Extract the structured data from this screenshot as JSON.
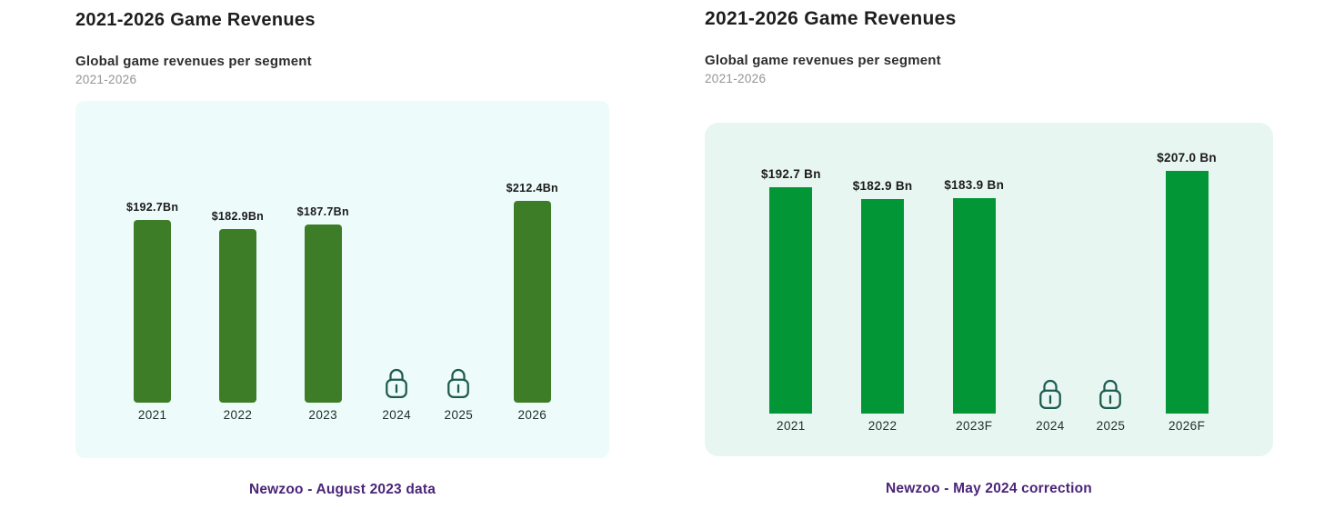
{
  "colors": {
    "page_background": "#ffffff",
    "caption_purple": "#4b2479",
    "lock_stroke": "#1e5b4e",
    "title_text": "#1e1e1e",
    "subtitle_text": "#2e2e2e",
    "period_text": "#949494"
  },
  "icons": {
    "lock": "lock-icon"
  },
  "chart_data": [
    {
      "type": "bar",
      "title": "2021-2026 Game Revenues",
      "subtitle": "Global game revenues per segment",
      "period": "2021-2026",
      "caption": "Newzoo - August 2023 data",
      "categories": [
        "2021",
        "2022",
        "2023",
        "2024",
        "2025",
        "2026"
      ],
      "values": [
        192.7,
        182.9,
        187.7,
        null,
        null,
        212.4
      ],
      "value_labels": [
        "$192.7Bn",
        "$182.9Bn",
        "$187.7Bn",
        null,
        null,
        "$212.4Bn"
      ],
      "locked_categories": [
        "2024",
        "2025"
      ],
      "unit": "USD billions",
      "ylim": [
        0,
        212.4
      ],
      "grid": false,
      "legend": "none",
      "bar_color": "#3e7d28",
      "panel_bg": "#edfbfa"
    },
    {
      "type": "bar",
      "title": "2021-2026 Game Revenues",
      "subtitle": "Global game revenues per segment",
      "period": "2021-2026",
      "caption": "Newzoo - May 2024 correction",
      "categories": [
        "2021",
        "2022",
        "2023F",
        "2024",
        "2025",
        "2026F"
      ],
      "values": [
        192.7,
        182.9,
        183.9,
        null,
        null,
        207.0
      ],
      "value_labels": [
        "$192.7 Bn",
        "$182.9 Bn",
        "$183.9 Bn",
        null,
        null,
        "$207.0 Bn"
      ],
      "locked_categories": [
        "2024",
        "2025"
      ],
      "unit": "USD billions",
      "ylim": [
        0,
        207.0
      ],
      "grid": false,
      "legend": "none",
      "bar_color": "#029636",
      "panel_bg": "#e8f6f2"
    }
  ]
}
